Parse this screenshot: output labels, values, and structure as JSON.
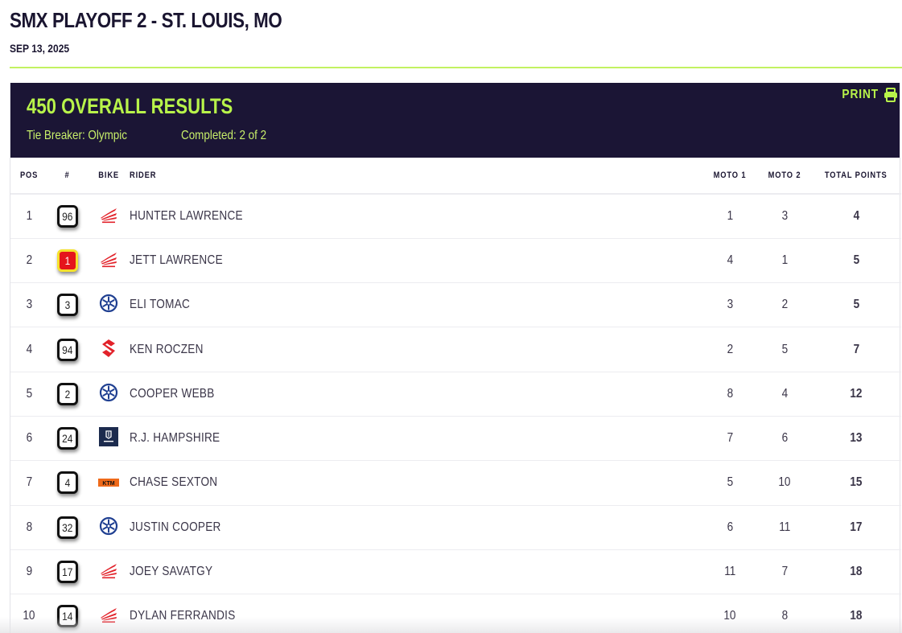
{
  "page": {
    "title": "SMX PLAYOFF 2 - ST. LOUIS, MO",
    "date": "SEP 13, 2025"
  },
  "card": {
    "title": "450 OVERALL RESULTS",
    "tie_breaker": "Tie Breaker: Olympic",
    "completed": "Completed: 2 of 2",
    "print_label": "PRINT",
    "print_icon": "printer-icon"
  },
  "colors": {
    "accent": "#b8f34a",
    "header_bg": "#1b1535",
    "text_dark": "#1a1530",
    "honda": "#e2222a",
    "yamaha": "#1f3f91",
    "suzuki": "#e2222a",
    "husqvarna": "#1c2b4e",
    "ktm": "#ef6a1a"
  },
  "table": {
    "columns": {
      "pos": "POS",
      "number": "#",
      "bike": "BIKE",
      "rider": "RIDER",
      "moto1": "MOTO 1",
      "moto2": "MOTO 2",
      "total": "TOTAL POINTS"
    },
    "rows": [
      {
        "pos": "1",
        "number": "96",
        "plate": "white",
        "bike": "honda",
        "rider": "HUNTER LAWRENCE",
        "moto1": "1",
        "moto2": "3",
        "total": "4"
      },
      {
        "pos": "2",
        "number": "1",
        "plate": "red",
        "bike": "honda",
        "rider": "JETT LAWRENCE",
        "moto1": "4",
        "moto2": "1",
        "total": "5"
      },
      {
        "pos": "3",
        "number": "3",
        "plate": "white",
        "bike": "yamaha",
        "rider": "ELI TOMAC",
        "moto1": "3",
        "moto2": "2",
        "total": "5"
      },
      {
        "pos": "4",
        "number": "94",
        "plate": "white",
        "bike": "suzuki",
        "rider": "KEN ROCZEN",
        "moto1": "2",
        "moto2": "5",
        "total": "7"
      },
      {
        "pos": "5",
        "number": "2",
        "plate": "white",
        "bike": "yamaha",
        "rider": "COOPER WEBB",
        "moto1": "8",
        "moto2": "4",
        "total": "12"
      },
      {
        "pos": "6",
        "number": "24",
        "plate": "white",
        "bike": "husqvarna",
        "rider": "R.J. HAMPSHIRE",
        "moto1": "7",
        "moto2": "6",
        "total": "13"
      },
      {
        "pos": "7",
        "number": "4",
        "plate": "white",
        "bike": "ktm",
        "rider": "CHASE SEXTON",
        "moto1": "5",
        "moto2": "10",
        "total": "15"
      },
      {
        "pos": "8",
        "number": "32",
        "plate": "white",
        "bike": "yamaha",
        "rider": "JUSTIN COOPER",
        "moto1": "6",
        "moto2": "11",
        "total": "17"
      },
      {
        "pos": "9",
        "number": "17",
        "plate": "white",
        "bike": "honda",
        "rider": "JOEY SAVATGY",
        "moto1": "11",
        "moto2": "7",
        "total": "18"
      },
      {
        "pos": "10",
        "number": "14",
        "plate": "white",
        "bike": "honda",
        "rider": "DYLAN FERRANDIS",
        "moto1": "10",
        "moto2": "8",
        "total": "18"
      }
    ]
  }
}
